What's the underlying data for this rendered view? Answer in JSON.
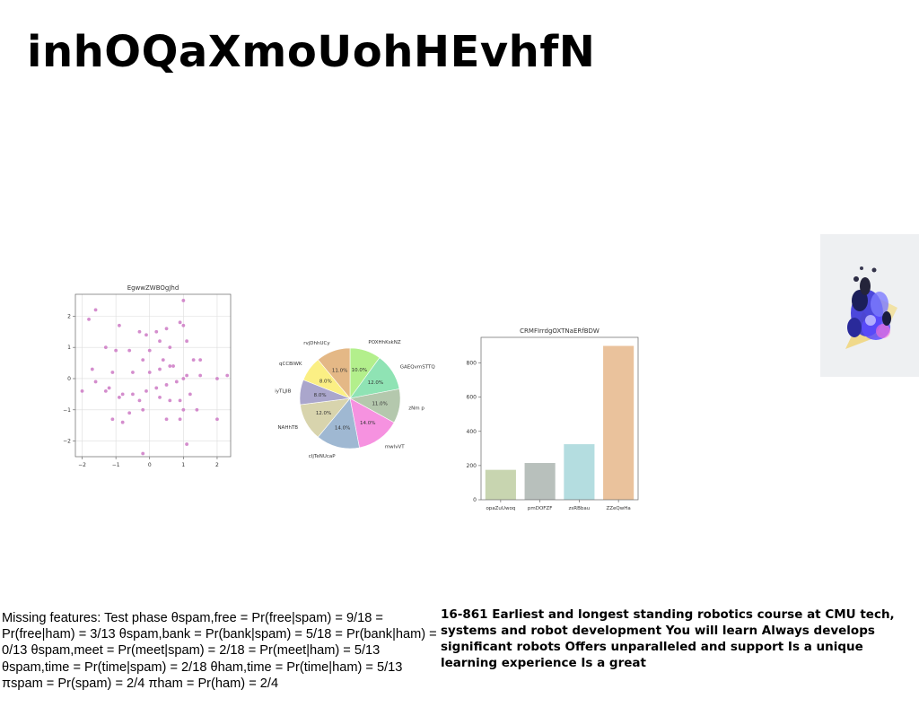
{
  "slide": {
    "title": "inhOQaXmoUohHEvhfN",
    "left_text": "Missing features: Test phase θspam,free = Pr(free|spam) = 9/18 = Pr(free|ham) = 3/13 θspam,bank = Pr(bank|spam) = 5/18 = Pr(bank|ham) = 0/13 θspam,meet = Pr(meet|spam) = 2/18 = Pr(meet|ham) = 5/13 θspam,time = Pr(time|spam) = 2/18 θham,time = Pr(time|ham) = 5/13 πspam = Pr(spam) = 2/4 πham = Pr(ham) = 2/4",
    "right_text": "16-861 Earliest and longest standing robotics course at CMU tech, systems and robot development You will learn Always develops significant robots Offers unparalleled and support Is a unique learning experience Is a great"
  },
  "chart_data": [
    {
      "type": "scatter",
      "title": "EgwwZWBOgJhd",
      "xlim": [
        -2.2,
        2.4
      ],
      "ylim": [
        -2.5,
        2.7
      ],
      "xticks": [
        -2,
        -1,
        0,
        1,
        2
      ],
      "yticks": [
        -2,
        -1,
        0,
        1,
        2
      ],
      "xtick_labels": [
        "−2",
        "−1",
        "0",
        "1",
        "2"
      ],
      "ytick_labels": [
        "−2",
        "−1",
        "0",
        "1",
        "2"
      ],
      "grid": true,
      "color": "#cc79c4",
      "points": [
        [
          -1.6,
          2.2
        ],
        [
          -1.8,
          1.9
        ],
        [
          -0.9,
          1.7
        ],
        [
          -0.3,
          1.5
        ],
        [
          -0.1,
          1.4
        ],
        [
          0.2,
          1.5
        ],
        [
          0.5,
          1.6
        ],
        [
          0.9,
          1.8
        ],
        [
          1.0,
          2.5
        ],
        [
          1.0,
          1.7
        ],
        [
          -1.3,
          1.0
        ],
        [
          -1.0,
          0.9
        ],
        [
          -0.6,
          0.9
        ],
        [
          0.0,
          0.9
        ],
        [
          0.3,
          1.2
        ],
        [
          0.6,
          1.0
        ],
        [
          1.1,
          1.2
        ],
        [
          1.3,
          0.6
        ],
        [
          1.5,
          0.6
        ],
        [
          -0.2,
          0.6
        ],
        [
          0.4,
          0.6
        ],
        [
          0.6,
          0.4
        ],
        [
          -1.7,
          0.3
        ],
        [
          -1.1,
          0.2
        ],
        [
          -0.5,
          0.2
        ],
        [
          0.0,
          0.2
        ],
        [
          0.3,
          0.3
        ],
        [
          0.7,
          0.4
        ],
        [
          1.1,
          0.1
        ],
        [
          1.5,
          0.1
        ],
        [
          2.0,
          0.0
        ],
        [
          2.3,
          0.1
        ],
        [
          -2.0,
          -0.4
        ],
        [
          -1.6,
          -0.1
        ],
        [
          -1.2,
          -0.3
        ],
        [
          -0.8,
          -0.5
        ],
        [
          -0.5,
          -0.5
        ],
        [
          -0.1,
          -0.4
        ],
        [
          0.2,
          -0.3
        ],
        [
          0.5,
          -0.2
        ],
        [
          0.8,
          -0.1
        ],
        [
          1.2,
          -0.5
        ],
        [
          -1.3,
          -0.4
        ],
        [
          -0.3,
          -0.7
        ],
        [
          0.3,
          -0.6
        ],
        [
          0.6,
          -0.7
        ],
        [
          0.9,
          -0.7
        ],
        [
          -0.9,
          -0.6
        ],
        [
          -1.1,
          -1.3
        ],
        [
          -0.8,
          -1.4
        ],
        [
          -0.6,
          -1.1
        ],
        [
          -0.2,
          -1.0
        ],
        [
          0.5,
          -1.3
        ],
        [
          1.0,
          -1.0
        ],
        [
          1.4,
          -1.0
        ],
        [
          2.0,
          -1.3
        ],
        [
          0.9,
          -1.3
        ],
        [
          1.1,
          -2.1
        ],
        [
          -0.2,
          -2.4
        ],
        [
          1.0,
          0.0
        ]
      ]
    },
    {
      "type": "pie",
      "slices": [
        {
          "label": "POXHhKskNZ",
          "value": 10.0,
          "pct": "10.0%",
          "color": "#b3ef8c"
        },
        {
          "label": "GAEQvmSTTQ",
          "value": 12.0,
          "pct": "12.0%",
          "color": "#8fe3b4"
        },
        {
          "label": "zNm p",
          "value": 11.0,
          "pct": "11.0%",
          "color": "#b4c8ad"
        },
        {
          "label": "mwlvVT",
          "value": 14.0,
          "pct": "14.0%",
          "color": "#f692e0"
        },
        {
          "label": "cIjTeNUcaP",
          "value": 14.0,
          "pct": "14.0%",
          "color": "#9fb8d2"
        },
        {
          "label": "NAHhTB",
          "value": 12.0,
          "pct": "12.0%",
          "color": "#d8d4ad"
        },
        {
          "label": "iyTLJIB",
          "value": 8.0,
          "pct": "8.0%",
          "color": "#aaa6cc"
        },
        {
          "label": "qCCBlWK",
          "value": 8.0,
          "pct": "8.0%",
          "color": "#fbef84"
        },
        {
          "label": "rvjDhhUCy",
          "value": 11.0,
          "pct": "11.0%",
          "color": "#e4b886"
        }
      ]
    },
    {
      "type": "bar",
      "title": "CRMFIrrdgOXTNaERfBDW",
      "categories": [
        "opaZuUwoq",
        "pmDOFZF",
        "zsRBbau",
        "ZZeQwHa"
      ],
      "values": [
        175,
        215,
        325,
        900
      ],
      "colors": [
        "#c8d5b0",
        "#b8c0bc",
        "#b4dde0",
        "#eac29c"
      ],
      "ylim": [
        0,
        950
      ],
      "yticks": [
        0,
        200,
        400,
        600,
        800
      ],
      "ytick_labels": [
        "0",
        "200",
        "400",
        "600",
        "800"
      ]
    }
  ]
}
